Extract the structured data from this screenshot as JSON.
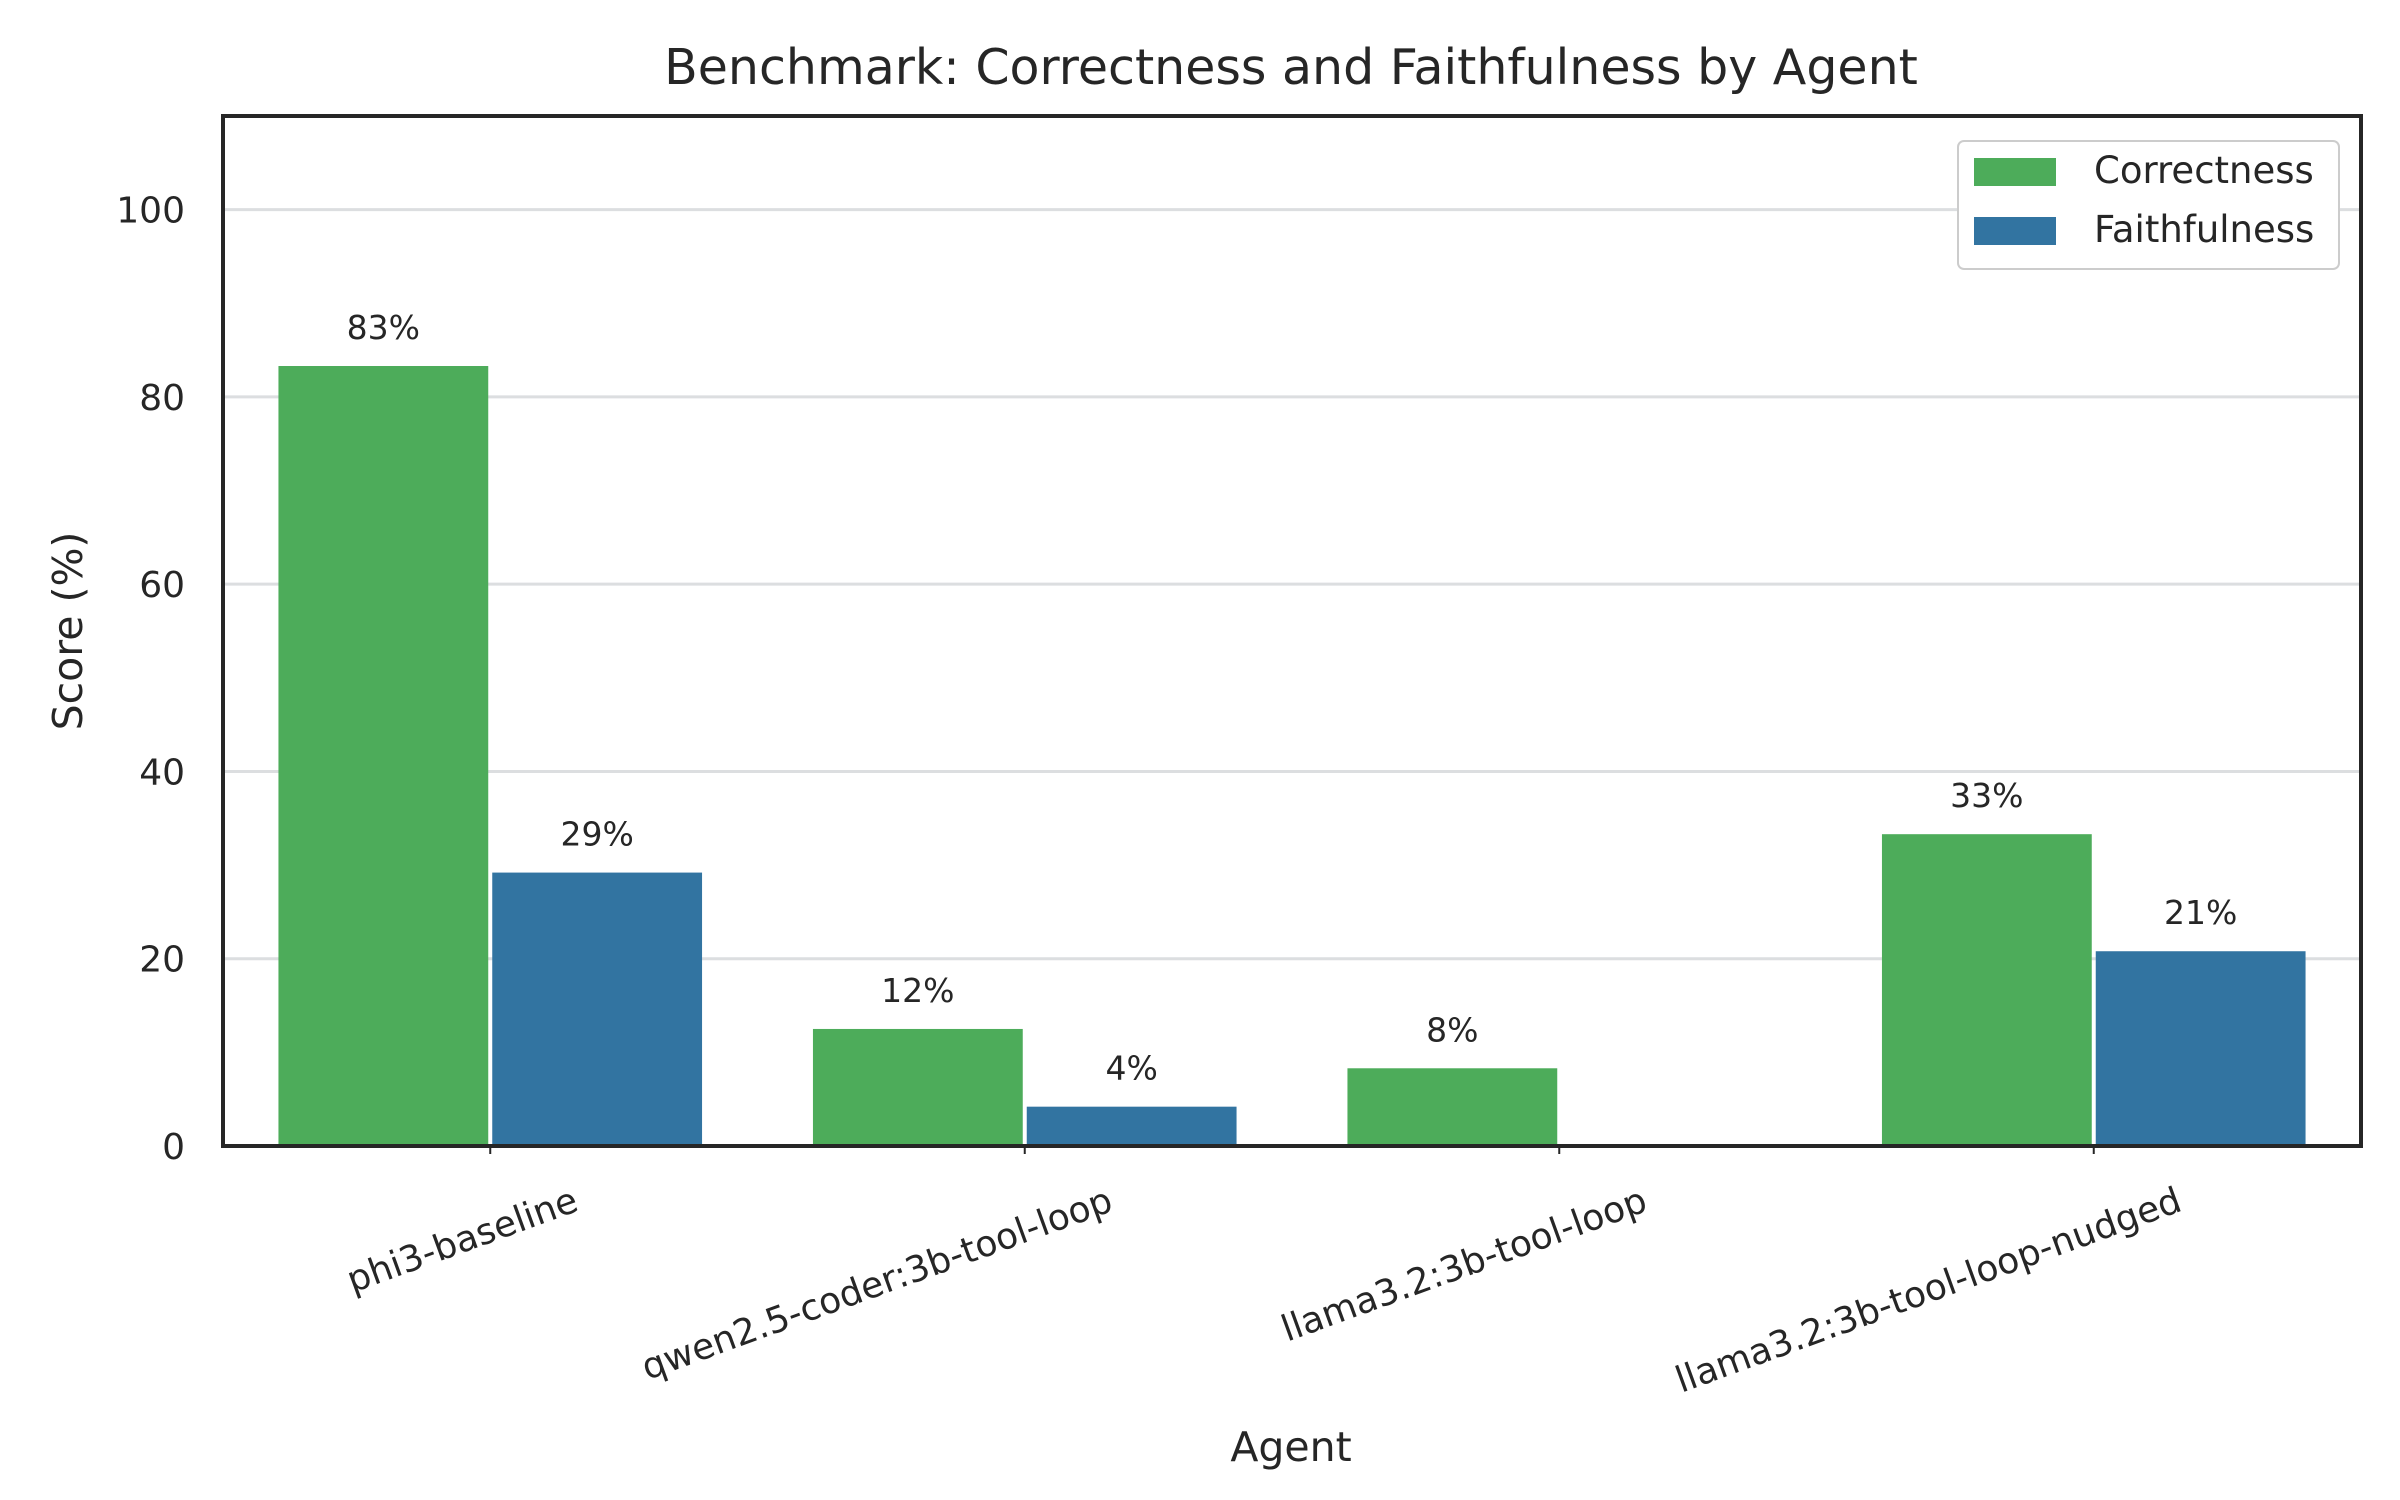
{
  "chart_data": {
    "type": "bar",
    "title": "Benchmark: Correctness and Faithfulness by Agent",
    "xlabel": "Agent",
    "ylabel": "Score (%)",
    "ylim": [
      0,
      110
    ],
    "yticks": [
      0,
      20,
      40,
      60,
      80,
      100
    ],
    "grid": "horizontal",
    "legend_position": "top-right",
    "categories": [
      "phi3-baseline",
      "qwen2.5-coder:3b-tool-loop",
      "llama3.2:3b-tool-loop",
      "llama3.2:3b-tool-loop-nudged"
    ],
    "series": [
      {
        "name": "Correctness",
        "color": "#4dac5a",
        "values": [
          83.3,
          12.5,
          8.3,
          33.3
        ],
        "labels": [
          "83%",
          "12%",
          "8%",
          "33%"
        ]
      },
      {
        "name": "Faithfulness",
        "color": "#3274a1",
        "values": [
          29.2,
          4.2,
          0,
          20.8
        ],
        "labels": [
          "29%",
          "4%",
          "",
          "21%"
        ]
      }
    ]
  }
}
